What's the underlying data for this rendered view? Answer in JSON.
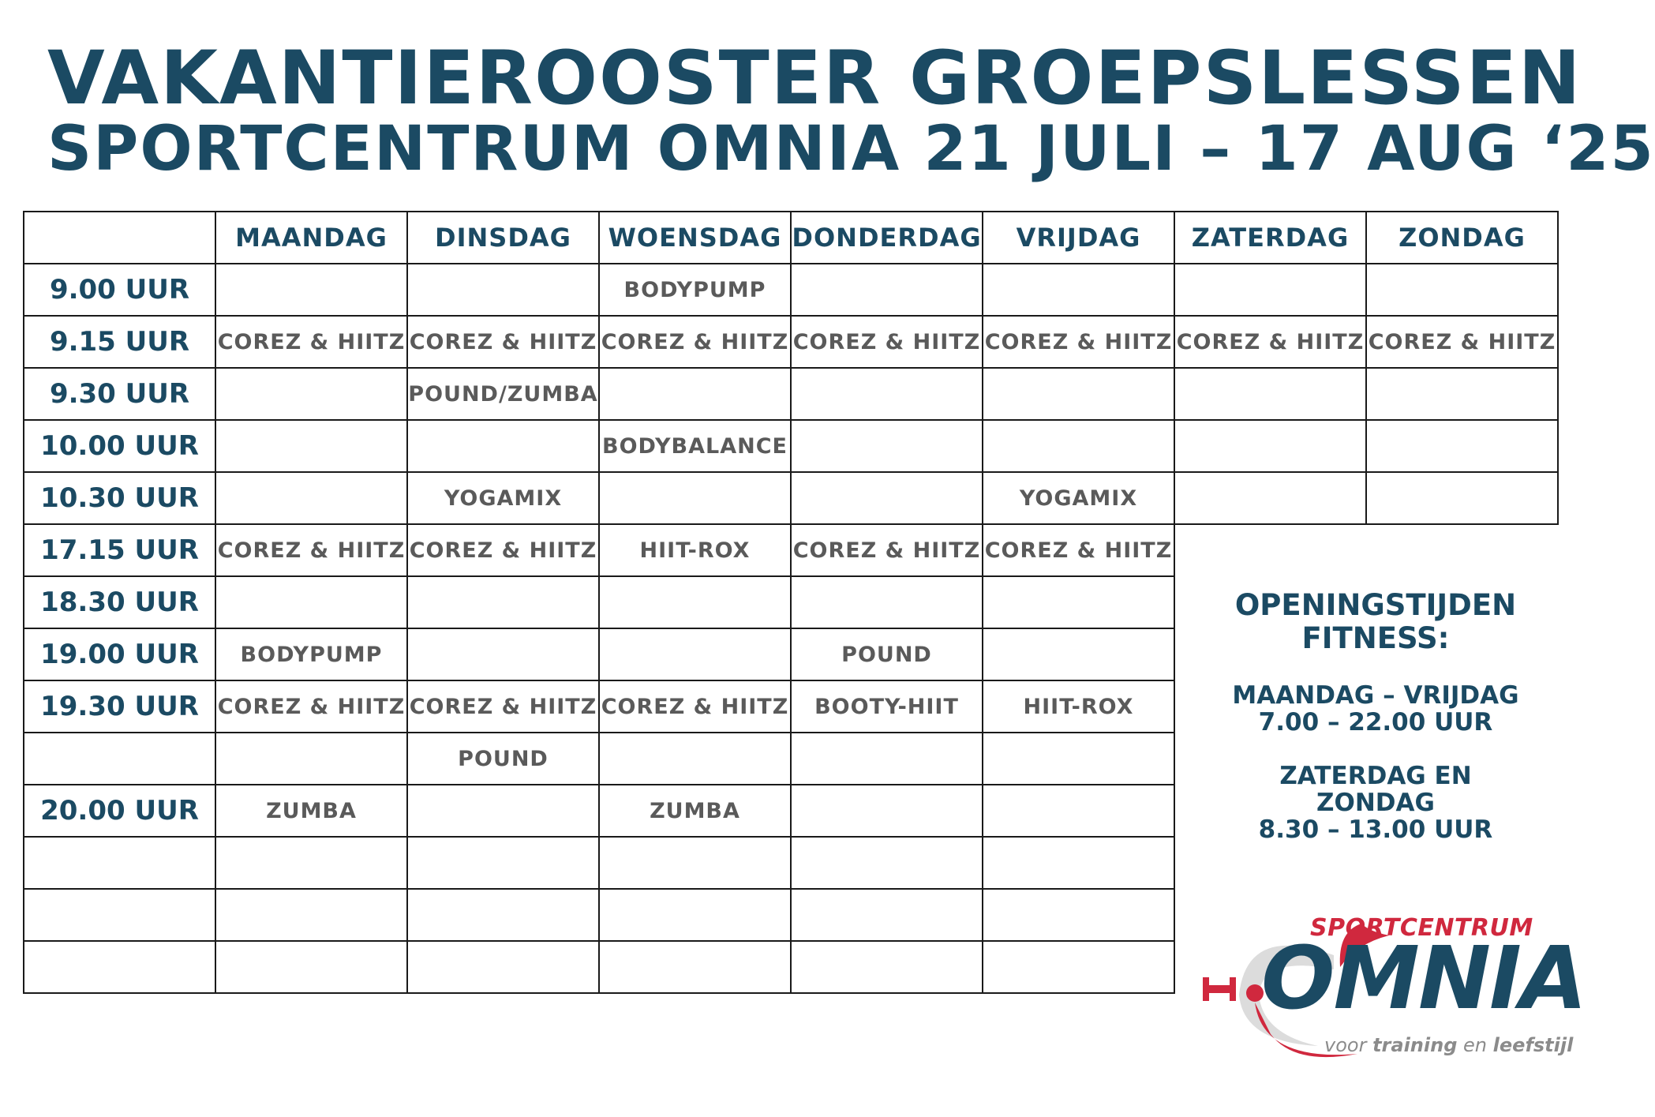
{
  "title": {
    "line1": "VAKANTIEROOSTER GROEPSLESSEN",
    "line2": "SPORTCENTRUM OMNIA 21 JULI – 17 AUG ‘25"
  },
  "schedule": {
    "weekdays": [
      "MAANDAG",
      "DINSDAG",
      "WOENSDAG",
      "DONDERDAG",
      "VRIJDAG"
    ],
    "rows": [
      {
        "time": "9.00 UUR",
        "classes": [
          "",
          "",
          "BODYPUMP",
          "",
          ""
        ]
      },
      {
        "time": "9.15 UUR",
        "classes": [
          "COREZ & HIITZ",
          "COREZ & HIITZ",
          "COREZ & HIITZ",
          "COREZ & HIITZ",
          "COREZ & HIITZ"
        ]
      },
      {
        "time": "9.30 UUR",
        "classes": [
          "",
          "POUND/ZUMBA",
          "",
          "",
          ""
        ]
      },
      {
        "time": "10.00 UUR",
        "classes": [
          "",
          "",
          "BODYBALANCE",
          "",
          ""
        ]
      },
      {
        "time": "10.30 UUR",
        "classes": [
          "",
          "YOGAMIX",
          "",
          "",
          "YOGAMIX"
        ]
      },
      {
        "time": "17.15 UUR",
        "classes": [
          "COREZ & HIITZ",
          "COREZ & HIITZ",
          "HIIT-ROX",
          "COREZ & HIITZ",
          "COREZ & HIITZ"
        ]
      },
      {
        "time": "18.30 UUR",
        "classes": [
          "",
          "",
          "",
          "",
          ""
        ]
      },
      {
        "time": "19.00 UUR",
        "classes": [
          "BODYPUMP",
          "",
          "",
          "POUND",
          ""
        ]
      },
      {
        "time": "19.30 UUR",
        "classes": [
          "COREZ & HIITZ",
          "COREZ & HIITZ",
          "COREZ & HIITZ",
          "BOOTY-HIIT",
          "HIIT-ROX"
        ]
      },
      {
        "time": "",
        "classes": [
          "",
          "POUND",
          "",
          "",
          ""
        ]
      },
      {
        "time": "20.00 UUR",
        "classes": [
          "ZUMBA",
          "",
          "ZUMBA",
          "",
          ""
        ]
      },
      {
        "time": "",
        "classes": [
          "",
          "",
          "",
          "",
          ""
        ]
      },
      {
        "time": "",
        "classes": [
          "",
          "",
          "",
          "",
          ""
        ]
      },
      {
        "time": "",
        "classes": [
          "",
          "",
          "",
          "",
          ""
        ]
      }
    ]
  },
  "weekend": {
    "days": [
      "ZATERDAG",
      "ZONDAG"
    ],
    "rows": [
      [
        "",
        ""
      ],
      [
        "COREZ & HIITZ",
        "COREZ & HIITZ"
      ],
      [
        "",
        ""
      ],
      [
        "",
        ""
      ],
      [
        "",
        ""
      ]
    ]
  },
  "opening_hours": {
    "title_line1": "OPENINGSTIJDEN",
    "title_line2": "FITNESS:",
    "weekday_label": "MAANDAG – VRIJDAG",
    "weekday_hours": "7.00 – 22.00 UUR",
    "weekend_label_line1": "ZATERDAG EN",
    "weekend_label_line2": "ZONDAG",
    "weekend_hours": "8.30 – 13.00 UUR"
  },
  "logo": {
    "top_text": "SPORTCENTRUM",
    "main_text": "OMNIA",
    "tagline_word1": "voor",
    "tagline_word2": "training",
    "tagline_word3": "en",
    "tagline_word4": "leefstijl",
    "colors": {
      "red": "#d0283e",
      "blue": "#1b4a63",
      "gray": "#8b8b8b"
    }
  },
  "colors": {
    "heading": "#1b4a63",
    "class_text": "#5a5a5a",
    "grid_line": "#1a1a1a"
  }
}
